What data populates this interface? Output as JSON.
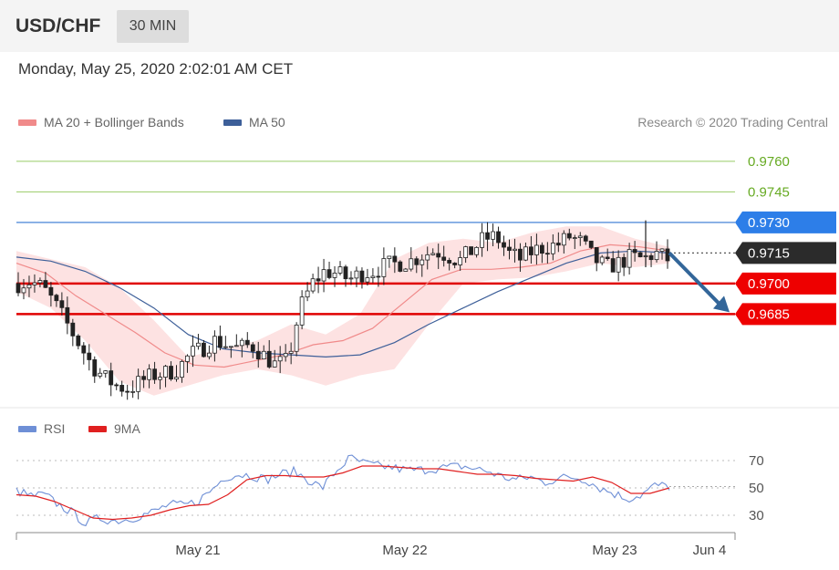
{
  "header": {
    "symbol": "USD/CHF",
    "timeframe": "30 MIN"
  },
  "datetime": "Monday, May 25, 2020 2:02:01 AM CET",
  "legend": {
    "ma20_label": "MA 20 + Bollinger Bands",
    "ma50_label": "MA 50",
    "rsi_label": "RSI",
    "ma9_label": "9MA",
    "credit": "Research © 2020 Trading Central"
  },
  "colors": {
    "bollinger_fill": "#fde2e2",
    "ma20": "#f08a8a",
    "ma50": "#3d5f99",
    "support": "#e00000",
    "resistance_green": "#99cc66",
    "resistance_blue": "#6699dd",
    "tag_red": "#ee0000",
    "tag_blue": "#2d7ee8",
    "tag_dark": "#2b2b2b",
    "rsi": "#6e8fd6",
    "ma9": "#e02020",
    "arrow": "#336699",
    "candle": "#222222"
  },
  "chart_data": [
    {
      "type": "candlestick",
      "instrument": "USD/CHF",
      "interval": "30 MIN",
      "ylim": [
        0.964,
        0.9772
      ],
      "x_ticks": [
        "May 21",
        "May 22",
        "May 23",
        "Jun 4"
      ],
      "levels": [
        {
          "value": 0.976,
          "label": "0.9760",
          "kind": "resistance"
        },
        {
          "value": 0.9745,
          "label": "0.9745",
          "kind": "resistance"
        },
        {
          "value": 0.973,
          "label": "0.9730",
          "kind": "key-resistance"
        },
        {
          "value": 0.9715,
          "label": "0.9715",
          "kind": "last-price"
        },
        {
          "value": 0.97,
          "label": "0.9700",
          "kind": "support"
        },
        {
          "value": 0.9685,
          "label": "0.9685",
          "kind": "support"
        }
      ],
      "close_path": [
        0.97,
        0.9701,
        0.9698,
        0.969,
        0.968,
        0.967,
        0.966,
        0.9654,
        0.965,
        0.9648,
        0.9652,
        0.9655,
        0.9656,
        0.9658,
        0.9665,
        0.9668,
        0.9672,
        0.967,
        0.9668,
        0.967,
        0.9665,
        0.966,
        0.9662,
        0.9688,
        0.97,
        0.9706,
        0.9705,
        0.9702,
        0.9705,
        0.9706,
        0.9709,
        0.971,
        0.9711,
        0.9714,
        0.9716,
        0.9714,
        0.9711,
        0.9716,
        0.9722,
        0.9723,
        0.9715,
        0.9712,
        0.9716,
        0.9718,
        0.9719,
        0.9723,
        0.972,
        0.9712,
        0.9708,
        0.971,
        0.9713,
        0.9712,
        0.9715,
        0.9712
      ],
      "ma20_path": [
        0.971,
        0.9705,
        0.9694,
        0.9685,
        0.9676,
        0.9666,
        0.966,
        0.9659,
        0.9662,
        0.9665,
        0.967,
        0.9672,
        0.9678,
        0.969,
        0.9702,
        0.9707,
        0.9707,
        0.9708,
        0.971,
        0.9716,
        0.9719,
        0.9718,
        0.9716
      ],
      "bb_upper_path": [
        0.9716,
        0.9712,
        0.9708,
        0.9698,
        0.9682,
        0.9664,
        0.9668,
        0.9672,
        0.968,
        0.9675,
        0.9685,
        0.9712,
        0.972,
        0.9722,
        0.972,
        0.9725,
        0.9728,
        0.9728,
        0.9722,
        0.9718
      ],
      "bb_lower_path": [
        0.9696,
        0.9688,
        0.9672,
        0.9652,
        0.9645,
        0.965,
        0.9655,
        0.9658,
        0.9655,
        0.965,
        0.9655,
        0.9658,
        0.968,
        0.97,
        0.9702,
        0.9703,
        0.9706,
        0.971,
        0.9708,
        0.971
      ],
      "ma50_path": [
        0.9713,
        0.9711,
        0.9706,
        0.9698,
        0.9688,
        0.9675,
        0.9668,
        0.9666,
        0.9665,
        0.9664,
        0.9665,
        0.9671,
        0.968,
        0.9688,
        0.9696,
        0.9703,
        0.971,
        0.9715,
        0.9716,
        0.9715
      ],
      "forecast": {
        "from": 0.9715,
        "to": 0.9685,
        "direction": "down"
      }
    },
    {
      "type": "line",
      "series": [
        {
          "name": "RSI"
        },
        {
          "name": "9MA"
        }
      ],
      "y_ticks": [
        30,
        50,
        70
      ],
      "ylim": [
        20,
        80
      ],
      "rsi_path": [
        48,
        44,
        45,
        38,
        32,
        24,
        28,
        26,
        27,
        30,
        33,
        38,
        37,
        40,
        48,
        58,
        60,
        59,
        56,
        60,
        62,
        56,
        50,
        62,
        72,
        68,
        66,
        65,
        63,
        63,
        64,
        65,
        66,
        64,
        62,
        58,
        56,
        58,
        54,
        57,
        58,
        56,
        50,
        46,
        42,
        45,
        52,
        51
      ],
      "ma9_path": [
        45,
        44,
        40,
        34,
        28,
        27,
        28,
        30,
        34,
        37,
        38,
        45,
        56,
        59,
        59,
        58,
        58,
        61,
        66,
        66,
        65,
        64,
        64,
        62,
        60,
        60,
        59,
        57,
        56,
        55,
        58,
        54,
        46,
        46,
        50
      ]
    }
  ]
}
